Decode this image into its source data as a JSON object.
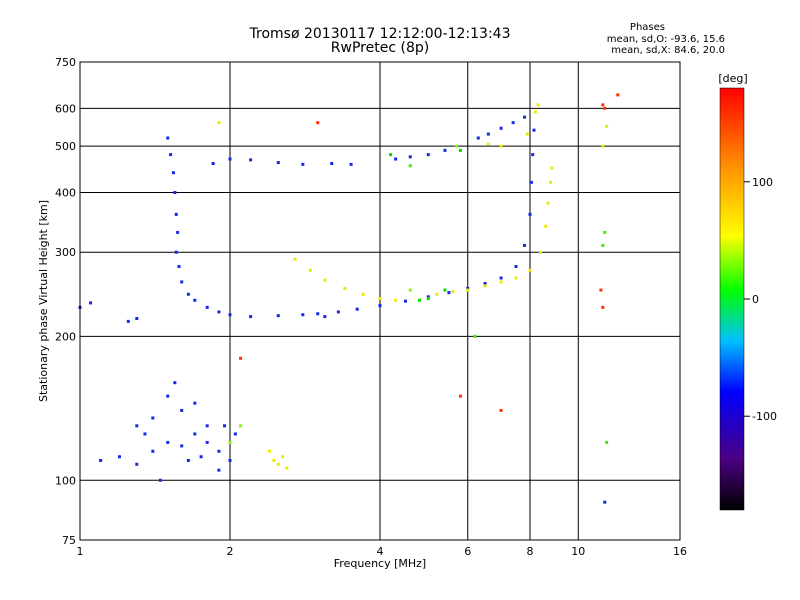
{
  "chart_data": {
    "type": "scatter",
    "title": "Tromsø 20130117 12:12:00-12:13:43",
    "subtitle": "RwPretec (8p)",
    "stats": {
      "heading": "Phases",
      "line_o": "mean, sd,O:  -93.6, 15.6",
      "line_x": "mean, sd,X:  84.6, 20.0"
    },
    "xlabel": "Frequency [MHz]",
    "ylabel": "Stationary phase Virtual Height [km]",
    "x_scale": "log",
    "y_scale": "log",
    "xlim": [
      1,
      16
    ],
    "ylim": [
      75,
      750
    ],
    "x_ticks": [
      1,
      2,
      4,
      6,
      8,
      10,
      16
    ],
    "y_ticks": [
      75,
      100,
      200,
      300,
      400,
      500,
      600,
      750
    ],
    "grid": true,
    "colorbar": {
      "label": "[deg]",
      "range": [
        -180,
        180
      ],
      "ticks": [
        100,
        0,
        -100
      ]
    },
    "series": [
      {
        "phase_deg": -100,
        "points": [
          [
            1.5,
            520
          ],
          [
            1.52,
            480
          ],
          [
            1.54,
            440
          ],
          [
            1.55,
            400
          ],
          [
            1.56,
            360
          ],
          [
            1.57,
            330
          ],
          [
            1.56,
            300
          ],
          [
            1.58,
            280
          ],
          [
            1.6,
            260
          ],
          [
            1.65,
            245
          ],
          [
            1.7,
            238
          ],
          [
            1.8,
            230
          ],
          [
            1.9,
            225
          ],
          [
            2.0,
            222
          ],
          [
            2.2,
            220
          ],
          [
            2.5,
            221
          ],
          [
            2.8,
            222
          ],
          [
            3.0,
            223
          ],
          [
            3.3,
            225
          ],
          [
            3.6,
            228
          ],
          [
            4.0,
            232
          ],
          [
            4.5,
            237
          ],
          [
            5.0,
            242
          ],
          [
            5.5,
            247
          ],
          [
            6.0,
            252
          ],
          [
            6.5,
            258
          ],
          [
            7.0,
            265
          ],
          [
            7.5,
            280
          ],
          [
            7.8,
            310
          ],
          [
            8.0,
            360
          ],
          [
            8.05,
            420
          ],
          [
            8.1,
            480
          ],
          [
            8.15,
            540
          ],
          [
            1.85,
            460
          ],
          [
            2.0,
            470
          ],
          [
            2.2,
            468
          ],
          [
            2.5,
            462
          ],
          [
            2.8,
            458
          ],
          [
            3.2,
            460
          ],
          [
            3.5,
            458
          ],
          [
            4.3,
            470
          ],
          [
            4.6,
            475
          ],
          [
            5.0,
            480
          ],
          [
            5.4,
            490
          ],
          [
            6.3,
            520
          ],
          [
            6.6,
            530
          ],
          [
            7.0,
            545
          ],
          [
            7.4,
            560
          ],
          [
            7.8,
            575
          ],
          [
            1.0,
            230
          ],
          [
            1.05,
            235
          ],
          [
            1.25,
            215
          ],
          [
            1.3,
            218
          ],
          [
            1.1,
            110
          ],
          [
            1.2,
            112
          ],
          [
            1.3,
            108
          ],
          [
            1.4,
            115
          ],
          [
            1.5,
            120
          ],
          [
            1.6,
            118
          ],
          [
            1.7,
            125
          ],
          [
            1.8,
            130
          ],
          [
            1.9,
            115
          ],
          [
            1.5,
            150
          ],
          [
            1.55,
            160
          ],
          [
            1.6,
            140
          ],
          [
            1.7,
            145
          ],
          [
            1.4,
            135
          ],
          [
            1.3,
            130
          ],
          [
            1.8,
            120
          ],
          [
            1.9,
            105
          ],
          [
            2.0,
            110
          ],
          [
            1.45,
            100
          ],
          [
            1.35,
            125
          ],
          [
            1.65,
            110
          ],
          [
            1.75,
            112
          ],
          [
            1.95,
            130
          ],
          [
            2.05,
            125
          ],
          [
            11.3,
            90
          ],
          [
            3.1,
            220
          ]
        ]
      },
      {
        "phase_deg": 110,
        "points": [
          [
            2.7,
            290
          ],
          [
            2.9,
            275
          ],
          [
            3.1,
            262
          ],
          [
            3.4,
            252
          ],
          [
            3.7,
            245
          ],
          [
            4.0,
            240
          ],
          [
            4.3,
            238
          ],
          [
            5.2,
            245
          ],
          [
            5.6,
            248
          ],
          [
            6.0,
            250
          ],
          [
            6.5,
            255
          ],
          [
            7.0,
            260
          ],
          [
            7.5,
            265
          ],
          [
            8.0,
            275
          ],
          [
            8.4,
            300
          ],
          [
            8.6,
            340
          ],
          [
            8.7,
            380
          ],
          [
            8.8,
            420
          ],
          [
            8.85,
            450
          ],
          [
            2.4,
            115
          ],
          [
            2.45,
            110
          ],
          [
            2.5,
            108
          ],
          [
            2.55,
            112
          ],
          [
            2.6,
            106
          ],
          [
            8.2,
            590
          ],
          [
            8.3,
            610
          ],
          [
            7.9,
            530
          ],
          [
            7.0,
            500
          ],
          [
            6.6,
            505
          ],
          [
            1.9,
            560
          ],
          [
            11.2,
            500
          ],
          [
            11.4,
            550
          ]
        ]
      },
      {
        "phase_deg": 0,
        "points": [
          [
            4.8,
            238
          ],
          [
            5.0,
            240
          ],
          [
            5.4,
            250
          ],
          [
            5.8,
            490
          ],
          [
            4.2,
            480
          ]
        ]
      },
      {
        "phase_deg": 170,
        "points": [
          [
            11.2,
            610
          ],
          [
            11.3,
            600
          ],
          [
            11.1,
            250
          ],
          [
            11.2,
            230
          ],
          [
            12.0,
            640
          ],
          [
            2.1,
            180
          ],
          [
            5.8,
            150
          ],
          [
            3.0,
            560
          ],
          [
            7.0,
            140
          ]
        ]
      },
      {
        "phase_deg": 50,
        "points": [
          [
            2.0,
            120
          ],
          [
            2.1,
            130
          ],
          [
            4.6,
            250
          ],
          [
            5.7,
            500
          ]
        ]
      },
      {
        "phase_deg": 25,
        "points": [
          [
            11.3,
            330
          ],
          [
            11.2,
            310
          ],
          [
            11.4,
            120
          ],
          [
            6.2,
            200
          ],
          [
            4.6,
            455
          ]
        ]
      }
    ]
  }
}
